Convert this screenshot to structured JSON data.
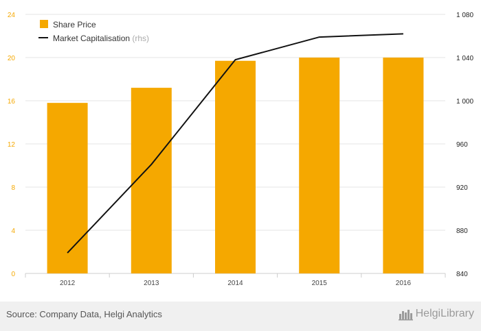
{
  "chart_data": {
    "type": "bar",
    "categories": [
      "2012",
      "2013",
      "2014",
      "2015",
      "2016"
    ],
    "series": [
      {
        "name": "Share Price",
        "type": "bar",
        "axis": "left",
        "color": "#f5a800",
        "values": [
          15.8,
          17.2,
          19.7,
          20.0,
          20.0
        ]
      },
      {
        "name": "Market Capitalisation",
        "name_suffix": "(rhs)",
        "type": "line",
        "axis": "right",
        "color": "#111111",
        "values": [
          859,
          941,
          1038,
          1059,
          1062
        ]
      }
    ],
    "y_left": {
      "min": 0,
      "max": 24,
      "ticks": [
        "0",
        "4",
        "8",
        "12",
        "16",
        "20",
        "24"
      ],
      "tick_values": [
        0,
        4,
        8,
        12,
        16,
        20,
        24
      ],
      "tick_color": "#f5a800"
    },
    "y_right": {
      "min": 840,
      "max": 1080,
      "ticks": [
        "840",
        "880",
        "920",
        "960",
        "1 000",
        "1 040",
        "1 080"
      ],
      "tick_values": [
        840,
        880,
        920,
        960,
        1000,
        1040,
        1080
      ]
    },
    "grid": true,
    "legend_position": "top-left",
    "title": "",
    "xlabel": "",
    "ylabel": ""
  },
  "footer": {
    "source": "Source: Company Data, Helgi Analytics",
    "brand": "HelgiLibrary"
  }
}
